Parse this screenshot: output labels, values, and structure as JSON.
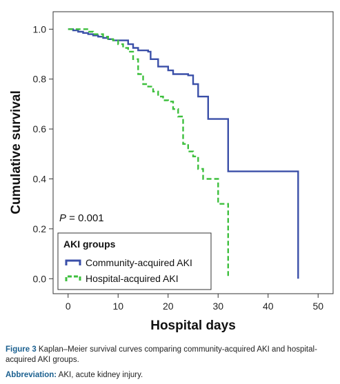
{
  "chart_data": {
    "type": "line",
    "style": "step",
    "title": "",
    "xlabel": "Hospital days",
    "ylabel": "Cumulative survival",
    "xlim": [
      -3,
      53
    ],
    "ylim": [
      -0.06,
      1.07
    ],
    "xticks": [
      0,
      10,
      20,
      30,
      40,
      50
    ],
    "yticks": [
      0.0,
      0.2,
      0.4,
      0.6,
      0.8,
      1.0
    ],
    "xtick_labels": [
      "0",
      "10",
      "20",
      "30",
      "40",
      "50"
    ],
    "ytick_labels": [
      "0.0",
      "0.2",
      "0.4",
      "0.6",
      "0.8",
      "1.0"
    ],
    "annotation": {
      "p_label": "P",
      "p_text": " = 0.001"
    },
    "legend": {
      "title": "AKI groups",
      "placement": "bottom-left"
    },
    "series": [
      {
        "name": "Community-acquired AKI",
        "color": "#3a4fa8",
        "dash": "solid",
        "x": [
          0,
          1,
          2,
          3,
          4,
          5,
          6,
          7,
          8,
          9,
          12,
          13,
          14,
          16,
          16.5,
          18,
          20,
          21,
          24,
          25,
          26,
          28,
          32,
          46,
          46
        ],
        "y": [
          1.0,
          0.995,
          0.99,
          0.985,
          0.98,
          0.975,
          0.97,
          0.965,
          0.96,
          0.955,
          0.94,
          0.925,
          0.915,
          0.91,
          0.88,
          0.85,
          0.835,
          0.82,
          0.815,
          0.78,
          0.73,
          0.64,
          0.43,
          0.43,
          0.0
        ]
      },
      {
        "name": "Hospital-acquired AKI",
        "color": "#3dbf3d",
        "dash": "dashed",
        "x": [
          0,
          4,
          5,
          7,
          8,
          9,
          10,
          11,
          12,
          13,
          14,
          15,
          16,
          17,
          18,
          19,
          20,
          21,
          22,
          23,
          24,
          25,
          26,
          27,
          30,
          32,
          32
        ],
        "y": [
          1.0,
          0.99,
          0.98,
          0.97,
          0.96,
          0.955,
          0.94,
          0.925,
          0.91,
          0.88,
          0.82,
          0.78,
          0.77,
          0.75,
          0.73,
          0.715,
          0.71,
          0.68,
          0.65,
          0.54,
          0.51,
          0.49,
          0.44,
          0.4,
          0.3,
          0.3,
          0.0
        ]
      }
    ]
  },
  "caption": {
    "figure_label": "Figure 3",
    "figure_text": " Kaplan–Meier survival curves comparing community-acquired AKI and hospital-acquired AKI groups.",
    "abbr_label": "Abbreviation:",
    "abbr_text": " AKI, acute kidney injury."
  }
}
